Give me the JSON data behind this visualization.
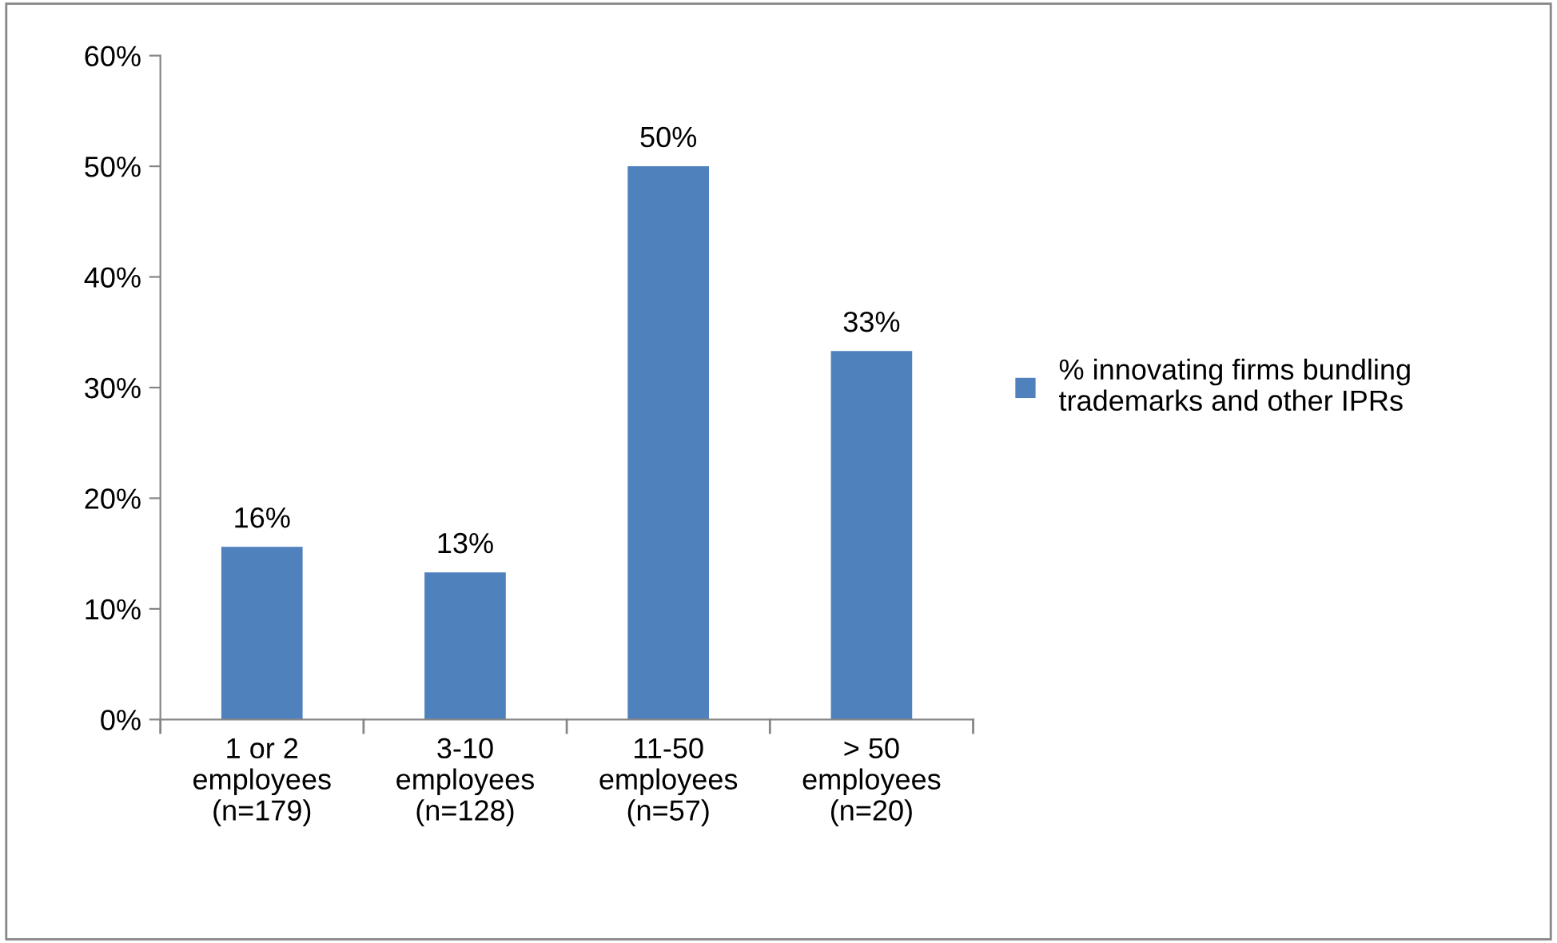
{
  "chart_data": {
    "type": "bar",
    "categories": [
      "1 or 2\nemployees\n(n=179)",
      "3-10\nemployees\n(n=128)",
      "11-50\nemployees\n(n=57)",
      "> 50\nemployees\n(n=20)"
    ],
    "series": [
      {
        "name": "% innovating firms bundling\ntrademarks and other IPRs",
        "color": "#4f81bd",
        "values": [
          15.6,
          13.3,
          50,
          33.3
        ],
        "value_labels": [
          "16%",
          "13%",
          "50%",
          "33%"
        ]
      }
    ],
    "ylim": [
      0,
      60
    ],
    "yticks": [
      {
        "value": 0,
        "label": "0%"
      },
      {
        "value": 10,
        "label": "10%"
      },
      {
        "value": 20,
        "label": "20%"
      },
      {
        "value": 30,
        "label": "30%"
      },
      {
        "value": 40,
        "label": "40%"
      },
      {
        "value": 50,
        "label": "50%"
      },
      {
        "value": 60,
        "label": "60%"
      }
    ],
    "grid": false,
    "legend": "right"
  }
}
